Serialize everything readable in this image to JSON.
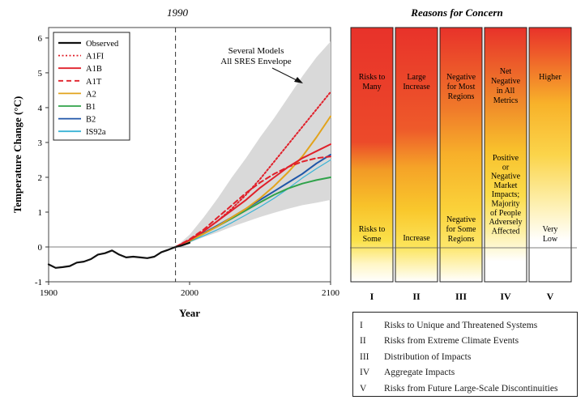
{
  "chart_data": [
    {
      "type": "line",
      "title": "1990",
      "xlabel": "Year",
      "ylabel": "Temperature Change (°C)",
      "xlim": [
        1900,
        2100
      ],
      "ylim": [
        -1,
        6.3
      ],
      "xticks": [
        1900,
        2000,
        2100
      ],
      "yticks": [
        -1,
        0,
        1,
        2,
        3,
        4,
        5,
        6
      ],
      "reference_line_year": 1990,
      "annotation": [
        "Several Models",
        "All SRES Envelope"
      ],
      "legend": [
        {
          "name": "Observed",
          "color": "#111111",
          "dash": "solid"
        },
        {
          "name": "A1FI",
          "color": "#e0202a",
          "dash": "dotted"
        },
        {
          "name": "A1B",
          "color": "#e0202a",
          "dash": "solid"
        },
        {
          "name": "A1T",
          "color": "#e0202a",
          "dash": "dashed"
        },
        {
          "name": "A2",
          "color": "#e2a31c",
          "dash": "solid"
        },
        {
          "name": "B1",
          "color": "#2fa24a",
          "dash": "solid"
        },
        {
          "name": "B2",
          "color": "#1f56a8",
          "dash": "solid"
        },
        {
          "name": "IS92a",
          "color": "#3ab3d6",
          "dash": "solid"
        }
      ],
      "envelope": {
        "x": [
          1990,
          2000,
          2010,
          2020,
          2030,
          2040,
          2050,
          2060,
          2070,
          2080,
          2090,
          2100
        ],
        "upper": [
          0,
          0.35,
          0.85,
          1.4,
          2.0,
          2.55,
          3.15,
          3.7,
          4.3,
          4.9,
          5.45,
          5.9
        ],
        "lower": [
          0,
          0.12,
          0.28,
          0.42,
          0.58,
          0.72,
          0.86,
          0.98,
          1.1,
          1.2,
          1.27,
          1.35
        ]
      },
      "series": [
        {
          "name": "Observed",
          "x": [
            1900,
            1905,
            1910,
            1915,
            1920,
            1925,
            1930,
            1935,
            1940,
            1945,
            1950,
            1955,
            1960,
            1965,
            1970,
            1975,
            1980,
            1985,
            1990,
            1995,
            2000
          ],
          "values": [
            -0.5,
            -0.6,
            -0.58,
            -0.55,
            -0.45,
            -0.42,
            -0.35,
            -0.22,
            -0.18,
            -0.1,
            -0.22,
            -0.3,
            -0.28,
            -0.3,
            -0.32,
            -0.28,
            -0.15,
            -0.08,
            0,
            0.05,
            0.12
          ]
        },
        {
          "name": "A1FI",
          "x": [
            1990,
            2000,
            2010,
            2020,
            2030,
            2040,
            2050,
            2060,
            2070,
            2080,
            2090,
            2100
          ],
          "values": [
            0,
            0.2,
            0.45,
            0.75,
            1.1,
            1.5,
            1.95,
            2.45,
            2.95,
            3.45,
            3.95,
            4.45
          ]
        },
        {
          "name": "A1B",
          "x": [
            1990,
            2000,
            2010,
            2020,
            2030,
            2040,
            2050,
            2060,
            2070,
            2080,
            2090,
            2100
          ],
          "values": [
            0,
            0.2,
            0.45,
            0.75,
            1.05,
            1.35,
            1.7,
            2.0,
            2.3,
            2.55,
            2.75,
            2.95
          ]
        },
        {
          "name": "A1T",
          "x": [
            1990,
            2000,
            2010,
            2020,
            2030,
            2040,
            2050,
            2060,
            2070,
            2080,
            2090,
            2100
          ],
          "values": [
            0,
            0.22,
            0.5,
            0.85,
            1.2,
            1.55,
            1.85,
            2.1,
            2.3,
            2.45,
            2.55,
            2.6
          ]
        },
        {
          "name": "A2",
          "x": [
            1990,
            2000,
            2010,
            2020,
            2030,
            2040,
            2050,
            2060,
            2070,
            2080,
            2090,
            2100
          ],
          "values": [
            0,
            0.18,
            0.38,
            0.6,
            0.85,
            1.1,
            1.4,
            1.75,
            2.15,
            2.6,
            3.15,
            3.75
          ]
        },
        {
          "name": "B1",
          "x": [
            1990,
            2000,
            2010,
            2020,
            2030,
            2040,
            2050,
            2060,
            2070,
            2080,
            2090,
            2100
          ],
          "values": [
            0,
            0.17,
            0.38,
            0.6,
            0.82,
            1.05,
            1.28,
            1.5,
            1.68,
            1.82,
            1.92,
            2.0
          ]
        },
        {
          "name": "B2",
          "x": [
            1990,
            2000,
            2010,
            2020,
            2030,
            2040,
            2050,
            2060,
            2070,
            2080,
            2090,
            2100
          ],
          "values": [
            0,
            0.18,
            0.4,
            0.62,
            0.85,
            1.1,
            1.35,
            1.6,
            1.85,
            2.1,
            2.4,
            2.65
          ]
        },
        {
          "name": "IS92a",
          "x": [
            1990,
            2000,
            2010,
            2020,
            2030,
            2040,
            2050,
            2060,
            2070,
            2080,
            2090,
            2100
          ],
          "values": [
            0,
            0.15,
            0.32,
            0.5,
            0.7,
            0.92,
            1.15,
            1.4,
            1.68,
            1.98,
            2.25,
            2.5
          ]
        }
      ]
    },
    {
      "type": "table",
      "title": "Reasons for Concern",
      "categories": [
        "I",
        "II",
        "III",
        "IV",
        "V"
      ],
      "columns": [
        {
          "numeral": "I",
          "upper": [
            "Risks to",
            "Many"
          ],
          "lower": [
            "Risks to",
            "Some"
          ],
          "middle": []
        },
        {
          "numeral": "II",
          "upper": [
            "Large",
            "Increase"
          ],
          "lower": [
            "Increase"
          ],
          "middle": []
        },
        {
          "numeral": "III",
          "upper": [
            "Negative",
            "for Most",
            "Regions"
          ],
          "lower": [
            "Negative",
            "for Some",
            "Regions"
          ],
          "middle": []
        },
        {
          "numeral": "IV",
          "upper": [
            "Net",
            "Negative",
            "in All",
            "Metrics"
          ],
          "lower": [],
          "middle": [
            "Positive",
            "or",
            "Negative",
            "Market",
            "Impacts;",
            "Majority",
            "of People",
            "Adversely",
            "Affected"
          ]
        },
        {
          "numeral": "V",
          "upper": [
            "Higher"
          ],
          "lower": [
            "Very",
            "Low"
          ],
          "middle": []
        }
      ],
      "key": [
        {
          "num": "I",
          "text": "Risks to Unique and Threatened Systems"
        },
        {
          "num": "II",
          "text": "Risks from Extreme Climate Events"
        },
        {
          "num": "III",
          "text": "Distribution of Impacts"
        },
        {
          "num": "IV",
          "text": "Aggregate Impacts"
        },
        {
          "num": "V",
          "text": "Risks from Future Large-Scale Discontinuities"
        }
      ]
    }
  ]
}
